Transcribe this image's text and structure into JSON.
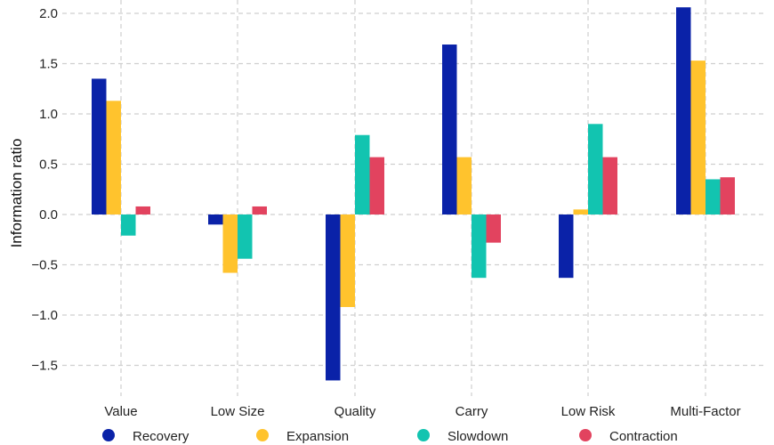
{
  "chart_data": {
    "type": "bar",
    "title": "",
    "xlabel": "",
    "ylabel": "Information ratio",
    "ylim": [
      -1.85,
      2.1
    ],
    "yticks": [
      2.0,
      1.5,
      1.0,
      0.5,
      0.0,
      -0.5,
      -1.0,
      -1.5
    ],
    "ytick_labels": [
      "2.0",
      "1.5",
      "1.0",
      "0.5",
      "0.0",
      "−0.5",
      "−1.0",
      "−1.5"
    ],
    "grid": true,
    "legend_position": "bottom",
    "categories": [
      "Value",
      "Low Size",
      "Quality",
      "Carry",
      "Low Risk",
      "Multi-Factor"
    ],
    "series": [
      {
        "name": "Recovery",
        "color": "#0A22A8",
        "values": [
          1.35,
          -0.1,
          -1.65,
          1.69,
          -0.63,
          2.06
        ]
      },
      {
        "name": "Expansion",
        "color": "#FFC32D",
        "values": [
          1.13,
          -0.58,
          -0.92,
          0.57,
          0.05,
          1.53
        ]
      },
      {
        "name": "Slowdown",
        "color": "#12C4B0",
        "values": [
          -0.21,
          -0.44,
          0.79,
          -0.63,
          0.9,
          0.35
        ]
      },
      {
        "name": "Contraction",
        "color": "#E2435F",
        "values": [
          0.08,
          0.08,
          0.57,
          -0.28,
          0.57,
          0.37
        ]
      }
    ]
  }
}
